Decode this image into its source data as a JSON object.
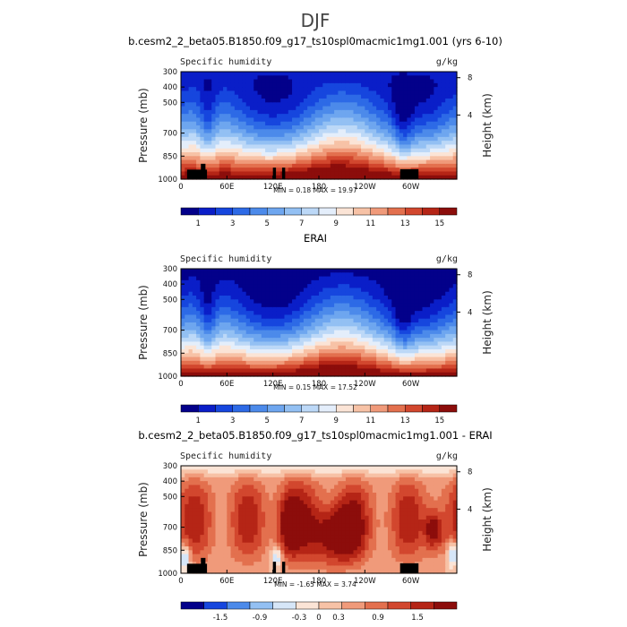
{
  "figure": {
    "title": "DJF"
  },
  "chart_data": [
    {
      "type": "heatmap",
      "title": "b.cesm2_2_beta05.B1850.f09_g17_ts10spl0macmic1mg1.001 (yrs 6-10)",
      "left_label": "Specific humidity",
      "right_label": "g/kg",
      "ylabel": "Pressure (mb)",
      "y2label": "Height (km)",
      "x_ticks": [
        "0",
        "60E",
        "120E",
        "180",
        "120W",
        "60W"
      ],
      "x_tick_values": [
        0,
        60,
        120,
        180,
        240,
        300
      ],
      "xlim": [
        0,
        360
      ],
      "y_ticks": [
        "300",
        "400",
        "500",
        "700",
        "850",
        "1000"
      ],
      "y_tick_values": [
        300,
        400,
        500,
        700,
        850,
        1000
      ],
      "ylim": [
        1000,
        300
      ],
      "height_ticks": [
        "8",
        "4"
      ],
      "height_tick_values": [
        8,
        4
      ],
      "min_text": "MIN =    0.18   MAX =   19.97",
      "min": 0.18,
      "max": 19.97,
      "colorbar": {
        "labels": [
          "1",
          "3",
          "5",
          "7",
          "9",
          "11",
          "13",
          "15"
        ],
        "label_values": [
          1,
          3,
          5,
          7,
          9,
          11,
          13,
          15
        ],
        "min": 0,
        "max": 16,
        "colors": [
          "#03008a",
          "#0a1ec8",
          "#1646de",
          "#2d6ae6",
          "#4c8aea",
          "#6ea6ef",
          "#93c0f3",
          "#bcd8f7",
          "#e4eefb",
          "#fbe4d6",
          "#f7c2a6",
          "#f09a7a",
          "#e3704e",
          "#d2472e",
          "#b52516",
          "#8c0d0b"
        ]
      },
      "field": "moist"
    },
    {
      "type": "heatmap",
      "title": "ERAI",
      "left_label": "Specific humidity",
      "right_label": "g/kg",
      "ylabel": "Pressure (mb)",
      "y2label": "Height (km)",
      "x_ticks": [
        "0",
        "60E",
        "120E",
        "180",
        "120W",
        "60W"
      ],
      "x_tick_values": [
        0,
        60,
        120,
        180,
        240,
        300
      ],
      "xlim": [
        0,
        360
      ],
      "y_ticks": [
        "300",
        "400",
        "500",
        "700",
        "850",
        "1000"
      ],
      "y_tick_values": [
        300,
        400,
        500,
        700,
        850,
        1000
      ],
      "ylim": [
        1000,
        300
      ],
      "height_ticks": [
        "8",
        "4"
      ],
      "height_tick_values": [
        8,
        4
      ],
      "min_text": "MIN =    0.15   MAX =   17.52",
      "min": 0.15,
      "max": 17.52,
      "colorbar": {
        "labels": [
          "1",
          "3",
          "5",
          "7",
          "9",
          "11",
          "13",
          "15"
        ],
        "label_values": [
          1,
          3,
          5,
          7,
          9,
          11,
          13,
          15
        ],
        "min": 0,
        "max": 16,
        "colors": [
          "#03008a",
          "#0a1ec8",
          "#1646de",
          "#2d6ae6",
          "#4c8aea",
          "#6ea6ef",
          "#93c0f3",
          "#bcd8f7",
          "#e4eefb",
          "#fbe4d6",
          "#f7c2a6",
          "#f09a7a",
          "#e3704e",
          "#d2472e",
          "#b52516",
          "#8c0d0b"
        ]
      },
      "field": "moist"
    },
    {
      "type": "heatmap",
      "title": "b.cesm2_2_beta05.B1850.f09_g17_ts10spl0macmic1mg1.001 - ERAI",
      "left_label": "Specific humidity",
      "right_label": "g/kg",
      "ylabel": "Pressure (mb)",
      "y2label": "Height (km)",
      "x_ticks": [
        "0",
        "60E",
        "120E",
        "180",
        "120W",
        "60W"
      ],
      "x_tick_values": [
        0,
        60,
        120,
        180,
        240,
        300
      ],
      "xlim": [
        0,
        360
      ],
      "y_ticks": [
        "300",
        "400",
        "500",
        "700",
        "850",
        "1000"
      ],
      "y_tick_values": [
        300,
        400,
        500,
        700,
        850,
        1000
      ],
      "ylim": [
        1000,
        300
      ],
      "height_ticks": [
        "8",
        "4"
      ],
      "height_tick_values": [
        8,
        4
      ],
      "min_text": "MIN =   -1.65   MAX =    3.74",
      "min": -1.65,
      "max": 3.74,
      "colorbar": {
        "labels": [
          "-1.5",
          "-0.9",
          "-0.3",
          "0",
          "0.3",
          "0.9",
          "1.5"
        ],
        "label_values": [
          -1.5,
          -0.9,
          -0.3,
          0,
          0.3,
          0.9,
          1.5
        ],
        "min": -2.1,
        "max": 2.1,
        "colors": [
          "#03008a",
          "#1646de",
          "#4c8aea",
          "#93c0f3",
          "#d6e6f8",
          "#fbe4d6",
          "#f7c2a6",
          "#f09a7a",
          "#e3704e",
          "#d2472e",
          "#b52516",
          "#8c0d0b"
        ]
      },
      "field": "diff"
    }
  ]
}
